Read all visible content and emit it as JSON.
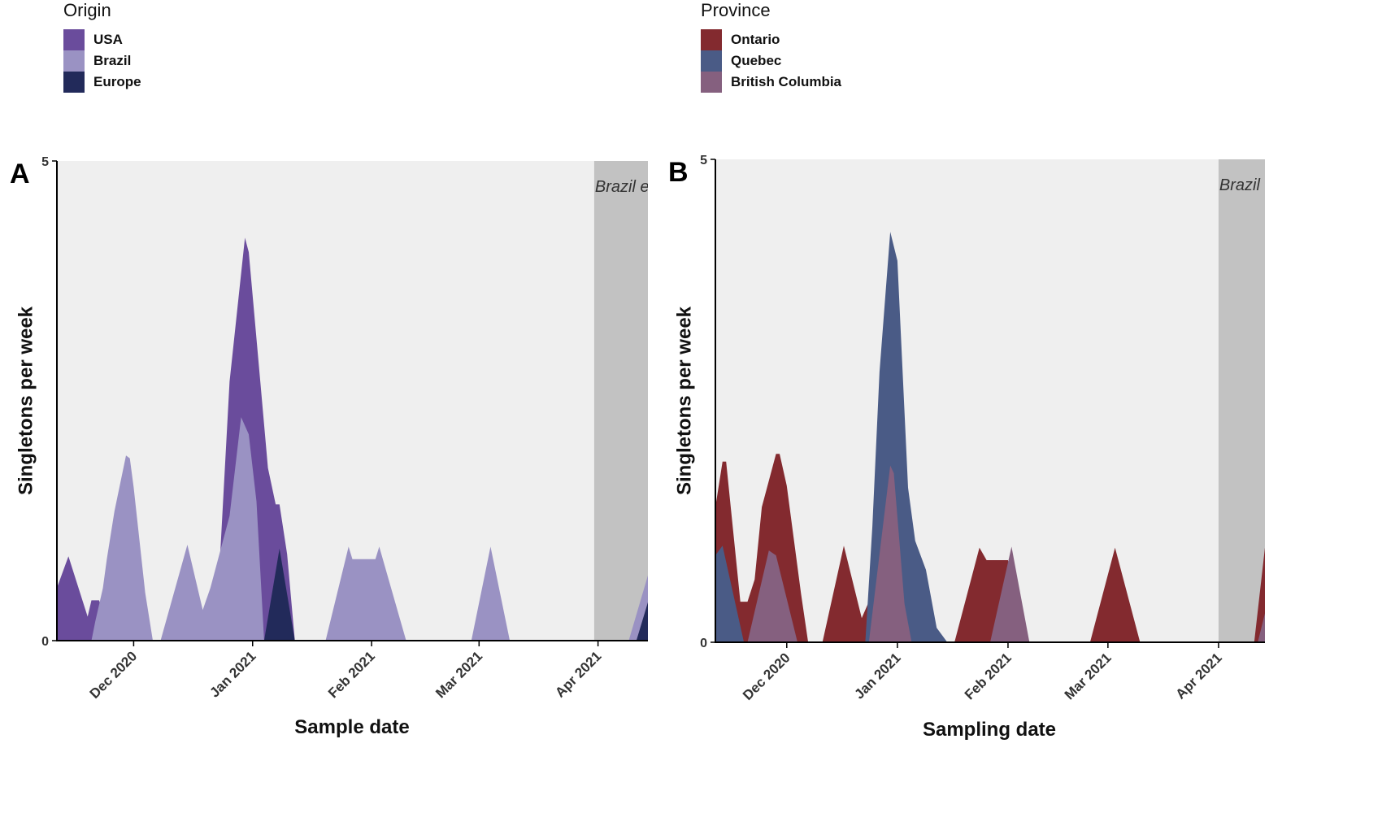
{
  "legends": [
    {
      "title": "Origin",
      "items": [
        {
          "label": "USA",
          "color": "#6a4c9c"
        },
        {
          "label": "Brazil",
          "color": "#9a92c3"
        },
        {
          "label": "Europe",
          "color": "#222a5a"
        }
      ]
    },
    {
      "title": "Province",
      "items": [
        {
          "label": "Ontario",
          "color": "#832a2f"
        },
        {
          "label": "Quebec",
          "color": "#4a5b86"
        },
        {
          "label": "British Columbia",
          "color": "#85607f"
        }
      ]
    }
  ],
  "chart_data": [
    {
      "type": "area",
      "panel_label": "A",
      "xlabel": "Sample date",
      "ylabel": "Singletons per week",
      "x_ticks": [
        "2020-12-01",
        "2021-01-01",
        "2021-02-01",
        "2021-03-01",
        "2021-04-01"
      ],
      "x_tick_labels": [
        "Dec 2020",
        "Jan 2021",
        "Feb 2021",
        "Mar 2021",
        "Apr 2021"
      ],
      "xlim": [
        "2020-11-11",
        "2021-04-14"
      ],
      "y_ticks": [
        0,
        5
      ],
      "ylim": [
        0,
        5
      ],
      "grid": false,
      "shaded_region": {
        "start": "2021-03-31",
        "end": "2021-04-14",
        "label": "Brazil e",
        "color": "#c2c2c2"
      },
      "series": [
        {
          "name": "USA",
          "color": "#6a4c9c",
          "points": [
            [
              "2020-11-11",
              0.55
            ],
            [
              "2020-11-14",
              0.88
            ],
            [
              "2020-11-19",
              0.25
            ],
            [
              "2020-11-20",
              0.42
            ],
            [
              "2020-11-22",
              0.42
            ],
            [
              "2020-11-24",
              0.12
            ],
            [
              "2020-11-26",
              0.0
            ],
            [
              "2020-12-21",
              0.0
            ],
            [
              "2020-12-23",
              0.5
            ],
            [
              "2020-12-26",
              2.7
            ],
            [
              "2020-12-30",
              4.2
            ],
            [
              "2020-12-31",
              4.05
            ],
            [
              "2021-01-03",
              2.7
            ],
            [
              "2021-01-05",
              1.8
            ],
            [
              "2021-01-07",
              1.42
            ],
            [
              "2021-01-08",
              1.42
            ],
            [
              "2021-01-10",
              0.9
            ],
            [
              "2021-01-12",
              0.0
            ]
          ]
        },
        {
          "name": "Brazil",
          "color": "#9a92c3",
          "points": [
            [
              "2020-11-20",
              0.0
            ],
            [
              "2020-11-21",
              0.2
            ],
            [
              "2020-11-23",
              0.55
            ],
            [
              "2020-11-24",
              0.85
            ],
            [
              "2020-11-26",
              1.35
            ],
            [
              "2020-11-29",
              1.93
            ],
            [
              "2020-11-30",
              1.9
            ],
            [
              "2020-12-01",
              1.6
            ],
            [
              "2020-12-04",
              0.5
            ],
            [
              "2020-12-06",
              0.0
            ],
            [
              "2020-12-08",
              0.0
            ],
            [
              "2020-12-15",
              1.0
            ],
            [
              "2020-12-19",
              0.32
            ],
            [
              "2020-12-21",
              0.55
            ],
            [
              "2020-12-26",
              1.3
            ],
            [
              "2020-12-29",
              2.33
            ],
            [
              "2020-12-31",
              2.15
            ],
            [
              "2021-01-02",
              1.45
            ],
            [
              "2021-01-04",
              0.0
            ],
            [
              "2021-01-20",
              0.0
            ],
            [
              "2021-01-26",
              0.98
            ],
            [
              "2021-01-27",
              0.85
            ],
            [
              "2021-02-02",
              0.85
            ],
            [
              "2021-02-03",
              0.98
            ],
            [
              "2021-02-10",
              0.0
            ],
            [
              "2021-02-27",
              0.0
            ],
            [
              "2021-03-04",
              0.98
            ],
            [
              "2021-03-09",
              0.0
            ],
            [
              "2021-04-09",
              0.0
            ],
            [
              "2021-04-14",
              0.68
            ]
          ]
        },
        {
          "name": "Europe",
          "color": "#222a5a",
          "points": [
            [
              "2021-01-04",
              0.0
            ],
            [
              "2021-01-08",
              0.96
            ],
            [
              "2021-01-12",
              0.0
            ],
            [
              "2021-04-11",
              0.0
            ],
            [
              "2021-04-14",
              0.4
            ]
          ]
        }
      ]
    },
    {
      "type": "area",
      "panel_label": "B",
      "xlabel": "Sampling date",
      "ylabel": "Singletons per week",
      "x_ticks": [
        "2020-12-01",
        "2021-01-01",
        "2021-02-01",
        "2021-03-01",
        "2021-04-01"
      ],
      "x_tick_labels": [
        "Dec 2020",
        "Jan 2021",
        "Feb 2021",
        "Mar 2021",
        "Apr 2021"
      ],
      "xlim": [
        "2020-11-11",
        "2021-04-14"
      ],
      "y_ticks": [
        0,
        5
      ],
      "ylim": [
        0,
        5
      ],
      "grid": false,
      "shaded_region": {
        "start": "2021-04-01",
        "end": "2021-04-15",
        "label": "Brazil e",
        "color": "#c2c2c2"
      },
      "series": [
        {
          "name": "Ontario",
          "color": "#832a2f",
          "points": [
            [
              "2020-11-11",
              1.4
            ],
            [
              "2020-11-13",
              1.87
            ],
            [
              "2020-11-14",
              1.87
            ],
            [
              "2020-11-18",
              0.42
            ],
            [
              "2020-11-20",
              0.42
            ],
            [
              "2020-11-22",
              0.65
            ],
            [
              "2020-11-24",
              1.4
            ],
            [
              "2020-11-28",
              1.95
            ],
            [
              "2020-11-29",
              1.95
            ],
            [
              "2020-12-01",
              1.62
            ],
            [
              "2020-12-05",
              0.5
            ],
            [
              "2020-12-07",
              0.0
            ],
            [
              "2020-12-11",
              0.0
            ],
            [
              "2020-12-17",
              1.0
            ],
            [
              "2020-12-22",
              0.25
            ],
            [
              "2020-12-24",
              0.42
            ],
            [
              "2020-12-27",
              0.0
            ],
            [
              "2021-01-17",
              0.0
            ],
            [
              "2021-01-24",
              0.98
            ],
            [
              "2021-01-26",
              0.85
            ],
            [
              "2021-02-01",
              0.85
            ],
            [
              "2021-02-07",
              0.0
            ],
            [
              "2021-02-24",
              0.0
            ],
            [
              "2021-03-03",
              0.98
            ],
            [
              "2021-03-10",
              0.0
            ],
            [
              "2021-04-11",
              0.0
            ],
            [
              "2021-04-14",
              0.98
            ]
          ]
        },
        {
          "name": "Quebec",
          "color": "#4a5b86",
          "points": [
            [
              "2020-11-11",
              0.9
            ],
            [
              "2020-11-13",
              1.0
            ],
            [
              "2020-11-19",
              0.0
            ],
            [
              "2020-12-23",
              0.0
            ],
            [
              "2020-12-25",
              1.2
            ],
            [
              "2020-12-27",
              2.8
            ],
            [
              "2020-12-30",
              4.25
            ],
            [
              "2021-01-01",
              3.95
            ],
            [
              "2021-01-04",
              1.6
            ],
            [
              "2021-01-06",
              1.05
            ],
            [
              "2021-01-09",
              0.75
            ],
            [
              "2021-01-12",
              0.15
            ],
            [
              "2021-01-15",
              0.0
            ]
          ]
        },
        {
          "name": "British Columbia",
          "color": "#85607f",
          "points": [
            [
              "2020-11-20",
              0.0
            ],
            [
              "2020-11-26",
              0.95
            ],
            [
              "2020-11-28",
              0.9
            ],
            [
              "2020-12-04",
              0.0
            ],
            [
              "2020-12-24",
              0.0
            ],
            [
              "2020-12-30",
              1.83
            ],
            [
              "2020-12-31",
              1.75
            ],
            [
              "2021-01-03",
              0.4
            ],
            [
              "2021-01-05",
              0.0
            ],
            [
              "2021-01-27",
              0.0
            ],
            [
              "2021-02-02",
              0.99
            ],
            [
              "2021-02-07",
              0.0
            ],
            [
              "2021-04-12",
              0.0
            ],
            [
              "2021-04-14",
              0.3
            ]
          ]
        }
      ]
    }
  ]
}
